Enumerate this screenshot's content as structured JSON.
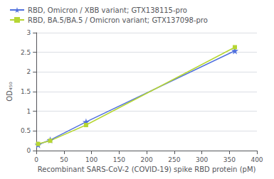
{
  "chart_data": {
    "type": "line",
    "xlabel": "Recombinant SARS-CoV-2 (COVID-19) spike RBD protein (pM)",
    "ylabel": "OD₄₅₀",
    "series": [
      {
        "name": "RBD, Omicron / XBB variant; GTX138115-pro",
        "x": [
          3,
          25,
          90,
          360
        ],
        "values": [
          0.15,
          0.27,
          0.73,
          2.54
        ],
        "marker": "star",
        "line_style": "solid"
      },
      {
        "name": "RBD, BA.5/BA.5 / Omicron variant; GTX137098-pro",
        "x": [
          3,
          25,
          90,
          360
        ],
        "values": [
          0.17,
          0.25,
          0.65,
          2.63
        ],
        "marker": "square",
        "line_style": "solid"
      }
    ],
    "xlim": [
      0,
      400
    ],
    "ylim": [
      0,
      3
    ],
    "xticks": [
      0,
      50,
      100,
      150,
      200,
      250,
      300,
      350,
      400
    ],
    "yticks": [
      0,
      0.5,
      1,
      1.5,
      2,
      2.5,
      3
    ],
    "grid": true,
    "legend": "upper left"
  }
}
